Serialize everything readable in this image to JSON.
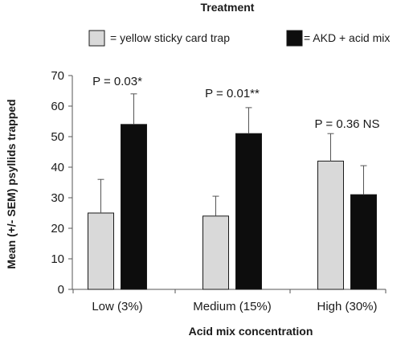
{
  "chart_data": {
    "type": "bar",
    "title": "Treatment",
    "xlabel": "Acid mix concentration",
    "ylabel": "Mean (+/- SEM) psyllids trapped",
    "ylim": [
      0,
      70
    ],
    "yticks": [
      0,
      10,
      20,
      30,
      40,
      50,
      60,
      70
    ],
    "grid": false,
    "legend_position": "top",
    "categories": [
      "Low (3%)",
      "Medium (15%)",
      "High (30%)"
    ],
    "series": [
      {
        "name": "= yellow  sticky card trap",
        "color": "#d9d9d9",
        "values": [
          25,
          24,
          42
        ],
        "errors": [
          11,
          6.5,
          9
        ]
      },
      {
        "name": "= AKD + acid mix",
        "color": "#0d0d0d",
        "values": [
          54,
          51,
          31
        ],
        "errors": [
          10,
          8.5,
          9.5
        ]
      }
    ],
    "annotations": [
      "P = 0.03*",
      "P = 0.01**",
      "P = 0.36 NS"
    ]
  }
}
